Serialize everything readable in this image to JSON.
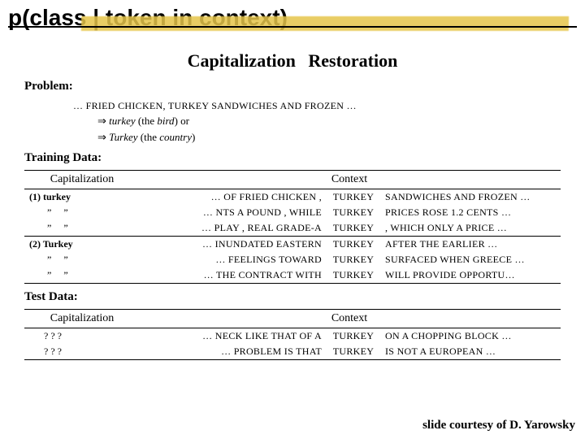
{
  "title": "p(class | token in context)",
  "heading": "Capitalization  Restoration",
  "labels": {
    "problem": "Problem:",
    "training": "Training Data:",
    "test": "Test Data:"
  },
  "problem": {
    "line1": "… FRIED CHICKEN, TURKEY SANDWICHES AND FROZEN …",
    "opt1_word": "turkey",
    "opt1_note": "(the ",
    "opt1_ital": "bird",
    "opt1_close": ")    or",
    "opt2_word": "Turkey",
    "opt2_note": "(the ",
    "opt2_ital": "country",
    "opt2_close": ")"
  },
  "table_headers": {
    "cap": "Capitalization",
    "ctx": "Context"
  },
  "ditto": "”   ”",
  "training_rows": [
    {
      "cap": "(1) turkey",
      "bold": true,
      "left": "… OF FRIED CHICKEN ,",
      "mid": "TURKEY",
      "right": "SANDWICHES AND FROZEN …"
    },
    {
      "cap": "ditto",
      "left": "… NTS A POUND , WHILE",
      "mid": "TURKEY",
      "right": "PRICES ROSE 1.2 CENTS …"
    },
    {
      "cap": "ditto",
      "left": "… PLAY , REAL GRADE-A",
      "mid": "TURKEY",
      "right": ", WHICH ONLY A PRICE …"
    },
    {
      "cap": "(2) Turkey",
      "bold": true,
      "sep": true,
      "left": "… INUNDATED EASTERN",
      "mid": "TURKEY",
      "right": "AFTER THE EARLIER …"
    },
    {
      "cap": "ditto",
      "left": "… FEELINGS TOWARD",
      "mid": "TURKEY",
      "right": "SURFACED WHEN GREECE …"
    },
    {
      "cap": "ditto",
      "left": "… THE CONTRACT WITH",
      "mid": "TURKEY",
      "right": "WILL PROVIDE OPPORTU…"
    }
  ],
  "test_rows": [
    {
      "cap": "? ? ?",
      "left": "… NECK LIKE THAT OF A",
      "mid": "TURKEY",
      "right": "ON A CHOPPING BLOCK …"
    },
    {
      "cap": "? ? ?",
      "left": "… PROBLEM IS THAT",
      "mid": "TURKEY",
      "right": "IS NOT A EUROPEAN …"
    }
  ],
  "courtesy": "slide courtesy of D. Yarowsky",
  "colors": {
    "brush": "#e6c54a",
    "text": "#000000",
    "background": "#ffffff"
  }
}
